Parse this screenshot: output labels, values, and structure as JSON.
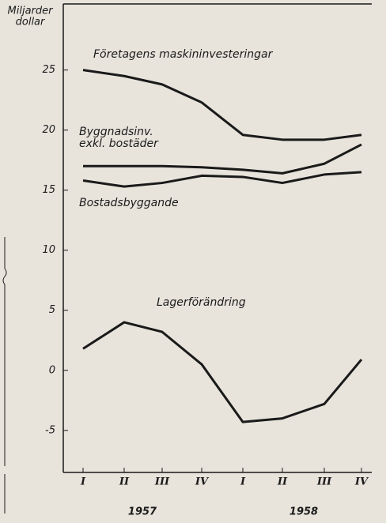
{
  "chart_data": {
    "type": "line",
    "ylabel": [
      "Miljarder",
      "dollar"
    ],
    "categories": [
      "I",
      "II",
      "III",
      "IV",
      "I",
      "II",
      "III",
      "IV"
    ],
    "x_groups": [
      "1957",
      "1958"
    ],
    "ylim": [
      -8.5,
      30.5
    ],
    "yticks": [
      -5,
      0,
      5,
      10,
      15,
      20,
      25
    ],
    "series": [
      {
        "name": "Företagens maskininvesteringar",
        "color": "#1a1a1a",
        "values": [
          25,
          24.5,
          23.8,
          22.3,
          19.6,
          19.2,
          19.2,
          19.6
        ]
      },
      {
        "name": "Byggnadsinv. exkl. bostäder",
        "color": "#1a1a1a",
        "values": [
          17,
          17,
          17,
          16.9,
          16.7,
          16.4,
          17.2,
          18.8
        ]
      },
      {
        "name": "Bostadsbyggande",
        "color": "#1a1a1a",
        "values": [
          15.8,
          15.3,
          15.6,
          16.2,
          16.1,
          15.6,
          16.3,
          16.5
        ]
      },
      {
        "name": "Lagerförändring",
        "color": "#1a1a1a",
        "values": [
          1.8,
          4,
          3.2,
          0.5,
          -4.3,
          -4,
          -2.8,
          0.9
        ]
      }
    ]
  }
}
